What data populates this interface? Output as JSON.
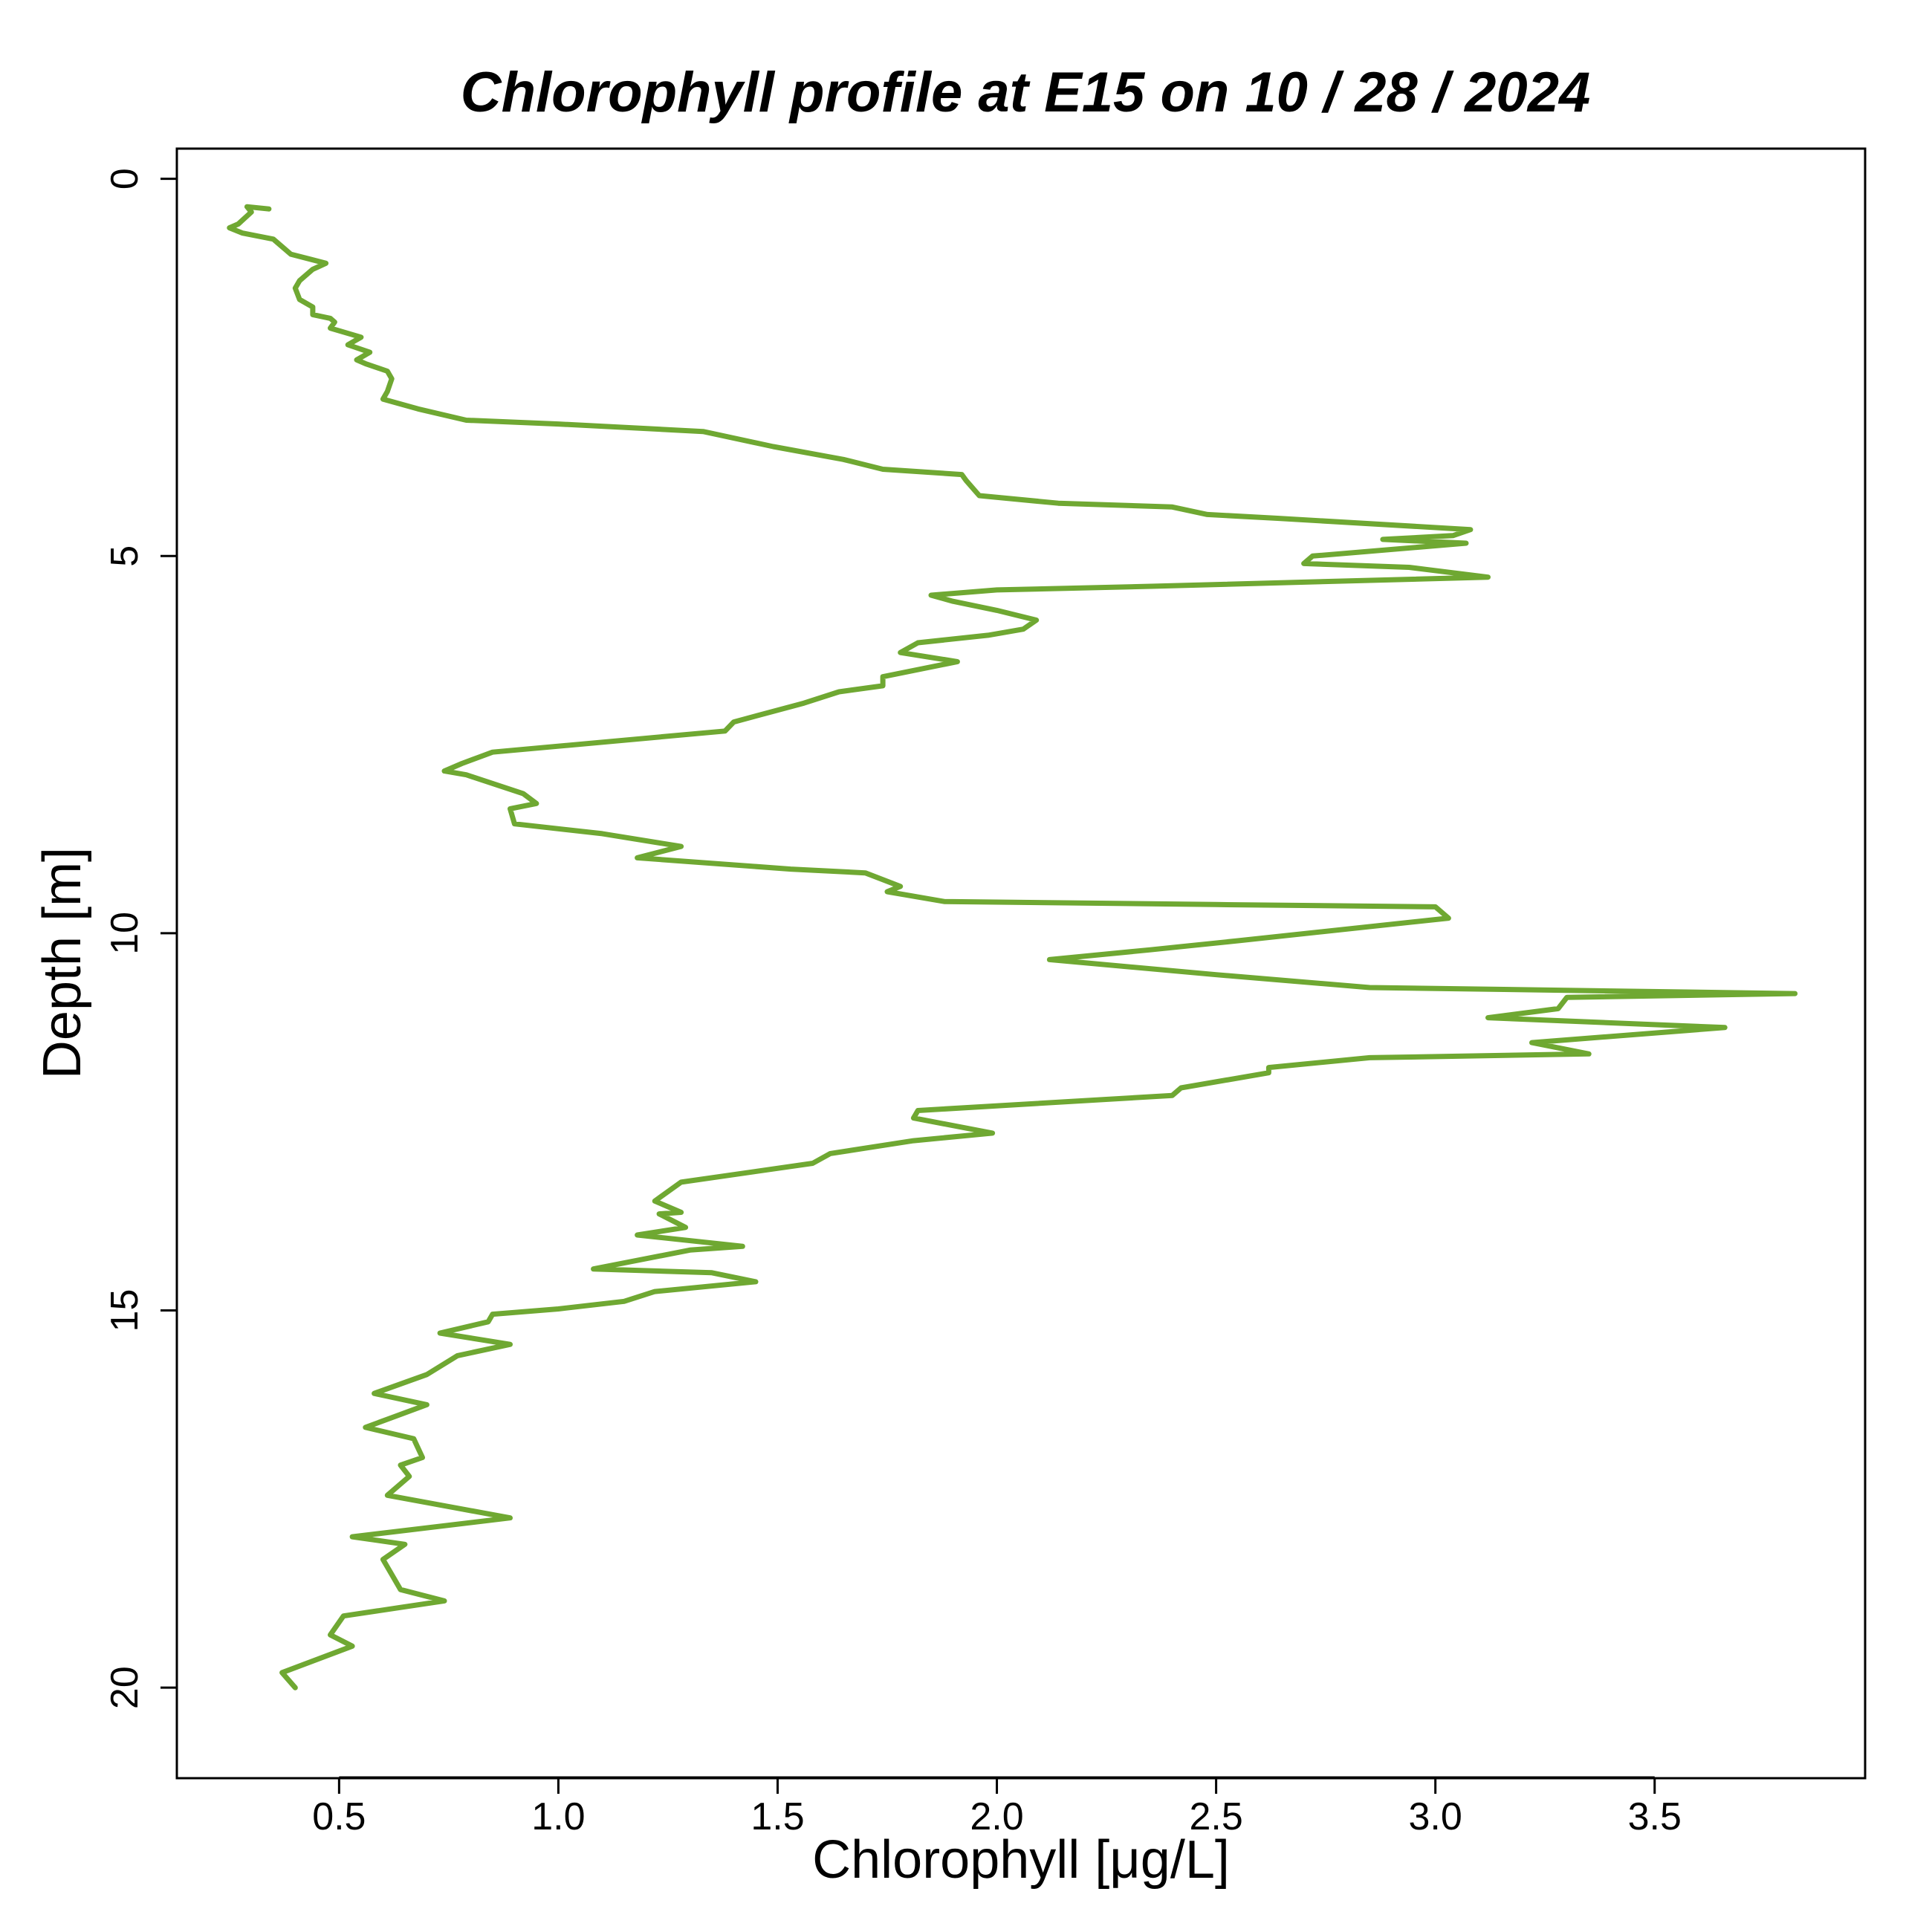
{
  "chart_data": {
    "type": "line",
    "title": "Chlorophyll profile at  E15 on 10 / 28 / 2024",
    "xlabel": "Chlorophyll [μg/L]",
    "ylabel": "Depth [m]",
    "xlim": [
      0.13,
      3.98
    ],
    "ylim": [
      21.2,
      -0.4
    ],
    "y_inverted": true,
    "grid": false,
    "x_ticks": [
      0.5,
      1.0,
      1.5,
      2.0,
      2.5,
      3.0,
      3.5
    ],
    "x_tick_labels": [
      "0.5",
      "1.0",
      "1.5",
      "2.0",
      "2.5",
      "3.0",
      "3.5"
    ],
    "y_ticks": [
      0,
      5,
      10,
      15,
      20
    ],
    "y_tick_labels": [
      "0",
      "5",
      "10",
      "15",
      "20"
    ],
    "series": [
      {
        "color": "#6fa832",
        "points": [
          [
            0.34,
            0.4
          ],
          [
            0.29,
            0.37
          ],
          [
            0.3,
            0.44
          ],
          [
            0.27,
            0.6
          ],
          [
            0.25,
            0.65
          ],
          [
            0.28,
            0.72
          ],
          [
            0.35,
            0.8
          ],
          [
            0.39,
            1.0
          ],
          [
            0.43,
            1.06
          ],
          [
            0.47,
            1.12
          ],
          [
            0.44,
            1.2
          ],
          [
            0.41,
            1.35
          ],
          [
            0.4,
            1.45
          ],
          [
            0.41,
            1.6
          ],
          [
            0.44,
            1.7
          ],
          [
            0.44,
            1.8
          ],
          [
            0.48,
            1.85
          ],
          [
            0.49,
            1.9
          ],
          [
            0.48,
            1.98
          ],
          [
            0.55,
            2.1
          ],
          [
            0.52,
            2.2
          ],
          [
            0.57,
            2.3
          ],
          [
            0.54,
            2.4
          ],
          [
            0.56,
            2.45
          ],
          [
            0.61,
            2.55
          ],
          [
            0.62,
            2.65
          ],
          [
            0.61,
            2.82
          ],
          [
            0.6,
            2.92
          ],
          [
            0.68,
            3.05
          ],
          [
            0.79,
            3.2
          ],
          [
            1.0,
            3.25
          ],
          [
            1.33,
            3.35
          ],
          [
            1.49,
            3.55
          ],
          [
            1.65,
            3.72
          ],
          [
            1.74,
            3.85
          ],
          [
            1.92,
            3.92
          ],
          [
            1.93,
            4.0
          ],
          [
            1.96,
            4.2
          ],
          [
            2.14,
            4.3
          ],
          [
            2.4,
            4.35
          ],
          [
            2.48,
            4.45
          ],
          [
            2.64,
            4.5
          ],
          [
            3.08,
            4.65
          ],
          [
            3.04,
            4.73
          ],
          [
            2.88,
            4.78
          ],
          [
            3.07,
            4.83
          ],
          [
            2.72,
            5.0
          ],
          [
            2.7,
            5.1
          ],
          [
            2.94,
            5.15
          ],
          [
            3.12,
            5.28
          ],
          [
            2.36,
            5.4
          ],
          [
            2.0,
            5.45
          ],
          [
            1.85,
            5.52
          ],
          [
            1.9,
            5.6
          ],
          [
            2.0,
            5.72
          ],
          [
            2.09,
            5.85
          ],
          [
            2.06,
            5.97
          ],
          [
            1.98,
            6.05
          ],
          [
            1.82,
            6.15
          ],
          [
            1.78,
            6.28
          ],
          [
            1.91,
            6.4
          ],
          [
            1.74,
            6.6
          ],
          [
            1.74,
            6.72
          ],
          [
            1.64,
            6.8
          ],
          [
            1.56,
            6.95
          ],
          [
            1.4,
            7.2
          ],
          [
            1.38,
            7.32
          ],
          [
            0.85,
            7.6
          ],
          [
            0.78,
            7.75
          ],
          [
            0.74,
            7.85
          ],
          [
            0.79,
            7.9
          ],
          [
            0.92,
            8.15
          ],
          [
            0.95,
            8.28
          ],
          [
            0.89,
            8.35
          ],
          [
            0.9,
            8.55
          ],
          [
            1.1,
            8.68
          ],
          [
            1.28,
            8.85
          ],
          [
            1.18,
            9.0
          ],
          [
            1.53,
            9.15
          ],
          [
            1.7,
            9.2
          ],
          [
            1.78,
            9.38
          ],
          [
            1.75,
            9.45
          ],
          [
            1.88,
            9.58
          ],
          [
            2.5,
            9.62
          ],
          [
            3.0,
            9.65
          ],
          [
            3.03,
            9.8
          ],
          [
            2.55,
            10.1
          ],
          [
            2.35,
            10.22
          ],
          [
            2.12,
            10.35
          ],
          [
            2.5,
            10.55
          ],
          [
            2.85,
            10.72
          ],
          [
            3.82,
            10.8
          ],
          [
            3.3,
            10.85
          ],
          [
            3.28,
            11.0
          ],
          [
            3.12,
            11.12
          ],
          [
            3.66,
            11.25
          ],
          [
            3.22,
            11.45
          ],
          [
            3.35,
            11.6
          ],
          [
            2.85,
            11.65
          ],
          [
            2.62,
            11.78
          ],
          [
            2.62,
            11.85
          ],
          [
            2.42,
            12.05
          ],
          [
            2.4,
            12.15
          ],
          [
            1.82,
            12.35
          ],
          [
            1.81,
            12.45
          ],
          [
            1.99,
            12.65
          ],
          [
            1.81,
            12.75
          ],
          [
            1.62,
            12.92
          ],
          [
            1.58,
            13.05
          ],
          [
            1.28,
            13.3
          ],
          [
            1.22,
            13.55
          ],
          [
            1.28,
            13.7
          ],
          [
            1.23,
            13.72
          ],
          [
            1.29,
            13.9
          ],
          [
            1.18,
            14.0
          ],
          [
            1.42,
            14.15
          ],
          [
            1.3,
            14.2
          ],
          [
            1.08,
            14.45
          ],
          [
            1.35,
            14.5
          ],
          [
            1.45,
            14.62
          ],
          [
            1.22,
            14.75
          ],
          [
            1.15,
            14.88
          ],
          [
            1.0,
            14.98
          ],
          [
            0.85,
            15.05
          ],
          [
            0.84,
            15.15
          ],
          [
            0.73,
            15.3
          ],
          [
            0.89,
            15.45
          ],
          [
            0.77,
            15.6
          ],
          [
            0.7,
            15.85
          ],
          [
            0.58,
            16.1
          ],
          [
            0.7,
            16.25
          ],
          [
            0.56,
            16.55
          ],
          [
            0.67,
            16.7
          ],
          [
            0.69,
            16.95
          ],
          [
            0.64,
            17.05
          ],
          [
            0.66,
            17.2
          ],
          [
            0.61,
            17.45
          ],
          [
            0.89,
            17.75
          ],
          [
            0.53,
            18.0
          ],
          [
            0.65,
            18.1
          ],
          [
            0.6,
            18.3
          ],
          [
            0.62,
            18.5
          ],
          [
            0.64,
            18.7
          ],
          [
            0.74,
            18.85
          ],
          [
            0.51,
            19.05
          ],
          [
            0.48,
            19.3
          ],
          [
            0.53,
            19.45
          ],
          [
            0.37,
            19.8
          ],
          [
            0.4,
            20.0
          ]
        ]
      }
    ]
  }
}
